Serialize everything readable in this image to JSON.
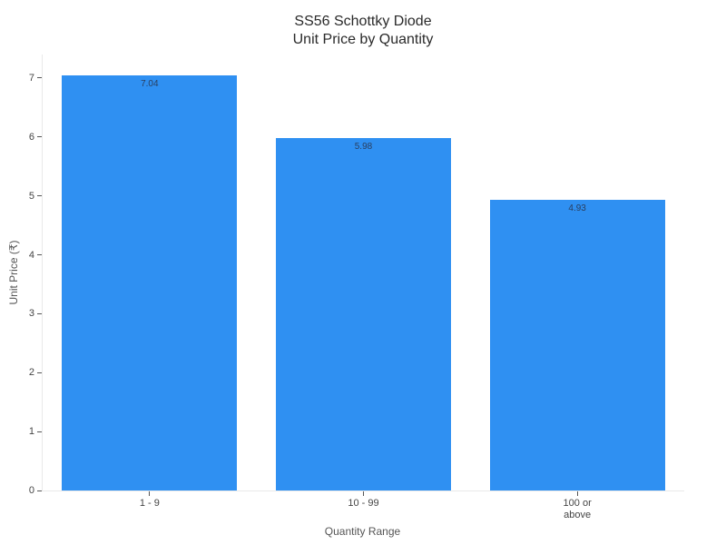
{
  "page": {
    "background": "#ffffff"
  },
  "chart_data": {
    "type": "bar",
    "title": "SS56 Schottky Diode\nUnit Price by Quantity",
    "title_lines": [
      "SS56 Schottky Diode",
      "Unit Price by Quantity"
    ],
    "categories": [
      "1 - 9",
      "10 - 99",
      "100 or above"
    ],
    "category_label_lines": [
      "1 - 9",
      "10 - 99",
      "100 or\nabove"
    ],
    "values": [
      7.04,
      5.98,
      4.93
    ],
    "value_labels": [
      "7.04",
      "5.98",
      "4.93"
    ],
    "xlabel": "Quantity Range",
    "ylabel": "Unit Price (₹)",
    "ylim": [
      0,
      7.4
    ],
    "yticks": [
      0,
      1,
      2,
      3,
      4,
      5,
      6,
      7
    ],
    "grid": false,
    "legend": null,
    "bar_width_fraction": 0.82,
    "colors": {
      "bar": "#2f90f2",
      "bar_label": "#2a3f5f",
      "axis_line": "#e9e9e9",
      "tick": "#555555",
      "tick_label": "#444444",
      "axis_title": "#555555",
      "title": "#2a2a2a"
    }
  }
}
